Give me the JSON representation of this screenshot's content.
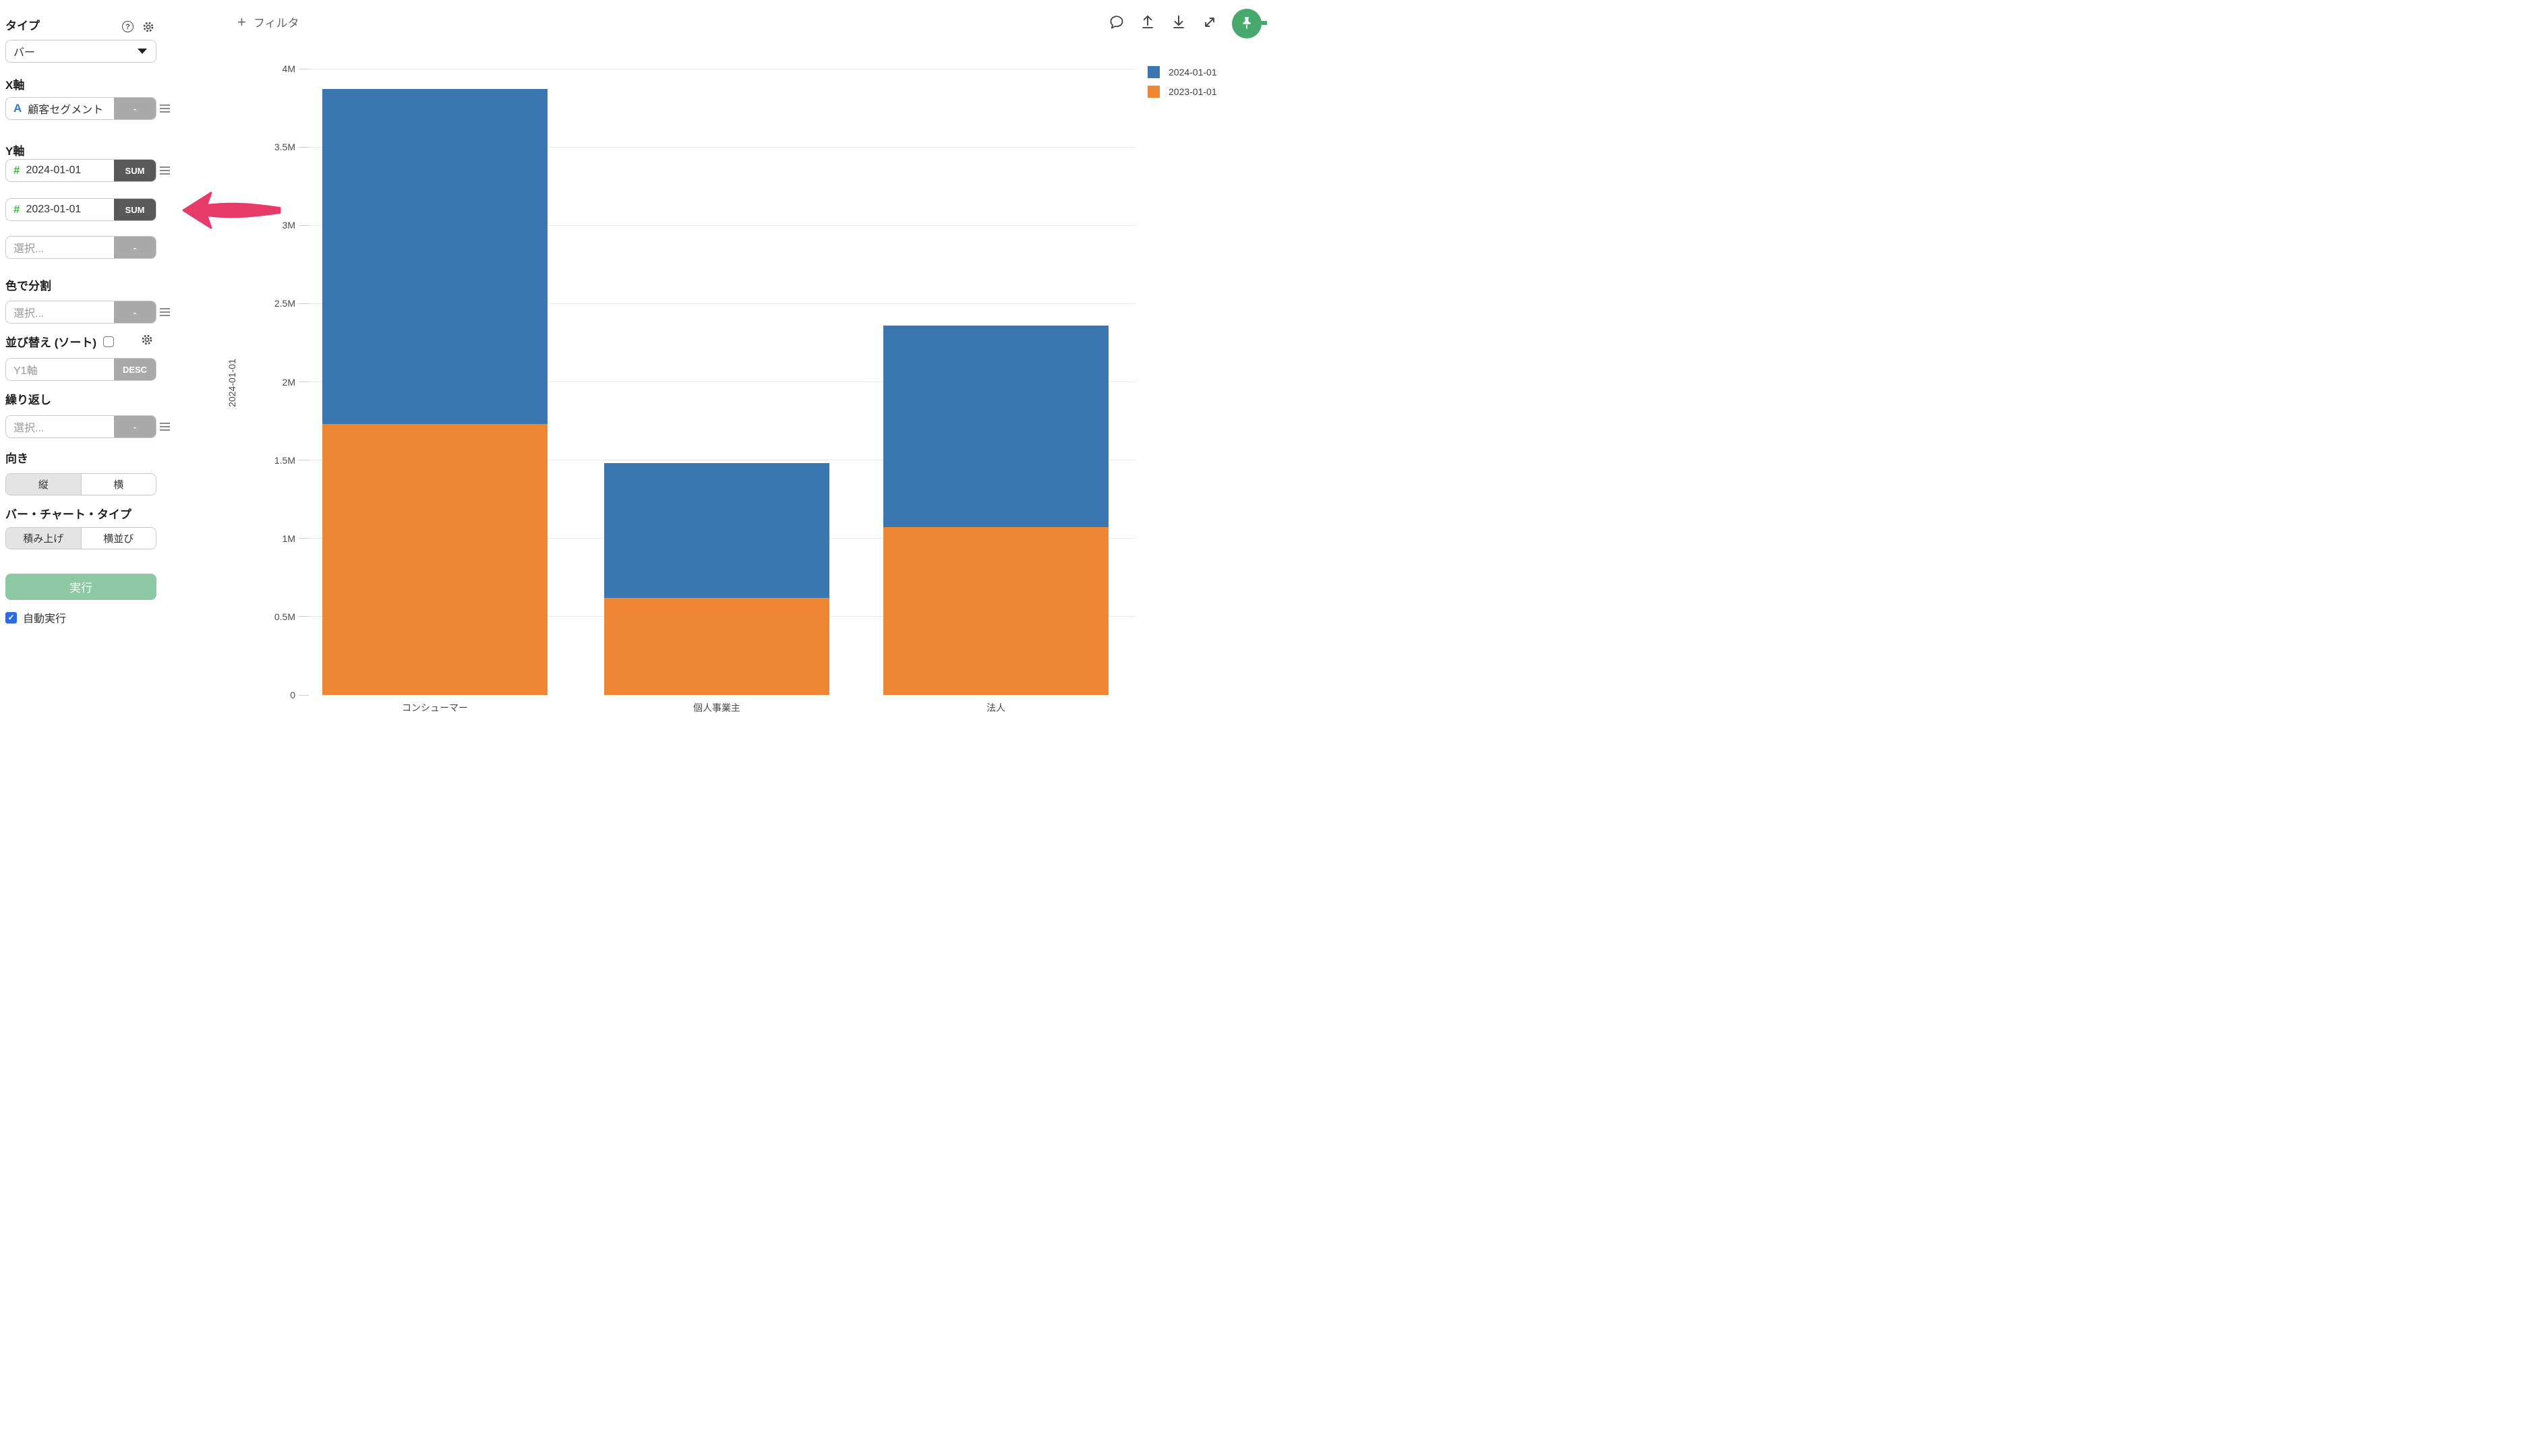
{
  "topbar": {
    "filter_label": "フィルタ",
    "plus_sign": "+"
  },
  "sidebar": {
    "type_label": "タイプ",
    "type_value": "バー",
    "x_axis": {
      "label": "X軸",
      "field_icon": "A",
      "field": "顧客セグメント",
      "agg": "-"
    },
    "y_axis": {
      "label": "Y軸",
      "rows": [
        {
          "field_icon": "#",
          "field": "2024-01-01",
          "agg": "SUM"
        },
        {
          "field_icon": "#",
          "field": "2023-01-01",
          "agg": "SUM"
        }
      ],
      "empty_row": {
        "placeholder": "選択...",
        "agg": "-"
      }
    },
    "color_section": {
      "label": "色で分割",
      "placeholder": "選択...",
      "agg": "-"
    },
    "sort_section": {
      "label": "並び替え (ソート)",
      "field": "Y1軸",
      "agg": "DESC",
      "checkbox_checked": false
    },
    "repeat_section": {
      "label": "繰り返し",
      "placeholder": "選択...",
      "agg": "-"
    },
    "orientation": {
      "label": "向き",
      "options": [
        "縦",
        "横"
      ],
      "selected": "縦"
    },
    "bar_chart_type": {
      "label": "バー・チャート・タイプ",
      "options": [
        "積み上げ",
        "横並び"
      ],
      "selected": "積み上げ"
    },
    "run_button_label": "実行",
    "auto_run": {
      "label": "自動実行",
      "checked": true,
      "check_glyph": "✓"
    }
  },
  "chart_data": {
    "type": "bar",
    "stacked": true,
    "orientation": "vertical",
    "categories": [
      "コンシューマー",
      "個人事業主",
      "法人"
    ],
    "series": [
      {
        "name": "2024-01-01",
        "color": "#3a76b0",
        "values": [
          2140000,
          860000,
          1290000
        ]
      },
      {
        "name": "2023-01-01",
        "color": "#ee8633",
        "values": [
          1730000,
          620000,
          1070000
        ]
      }
    ],
    "stack_order_bottom_to_top": [
      "2023-01-01",
      "2024-01-01"
    ],
    "title": "",
    "xlabel": "",
    "ylabel": "2024-01-01",
    "ylim": [
      0,
      4000000
    ],
    "ytick_step": 500000,
    "ytick_labels": [
      "0",
      "0.5M",
      "1M",
      "1.5M",
      "2M",
      "2.5M",
      "3M",
      "3.5M",
      "4M"
    ],
    "grid": "horizontal",
    "legend_position": "top-right"
  },
  "colors": {
    "series_blue": "#3a76b0",
    "series_orange": "#ee8633",
    "run_button_green": "#8cc8a3",
    "pin_green": "#47a96e",
    "checkbox_blue": "#2e6be0",
    "agg_dark": "#595959",
    "agg_gray": "#a9a9a9",
    "callout_pink": "#e83a68",
    "gridline": "#eaeaea"
  }
}
